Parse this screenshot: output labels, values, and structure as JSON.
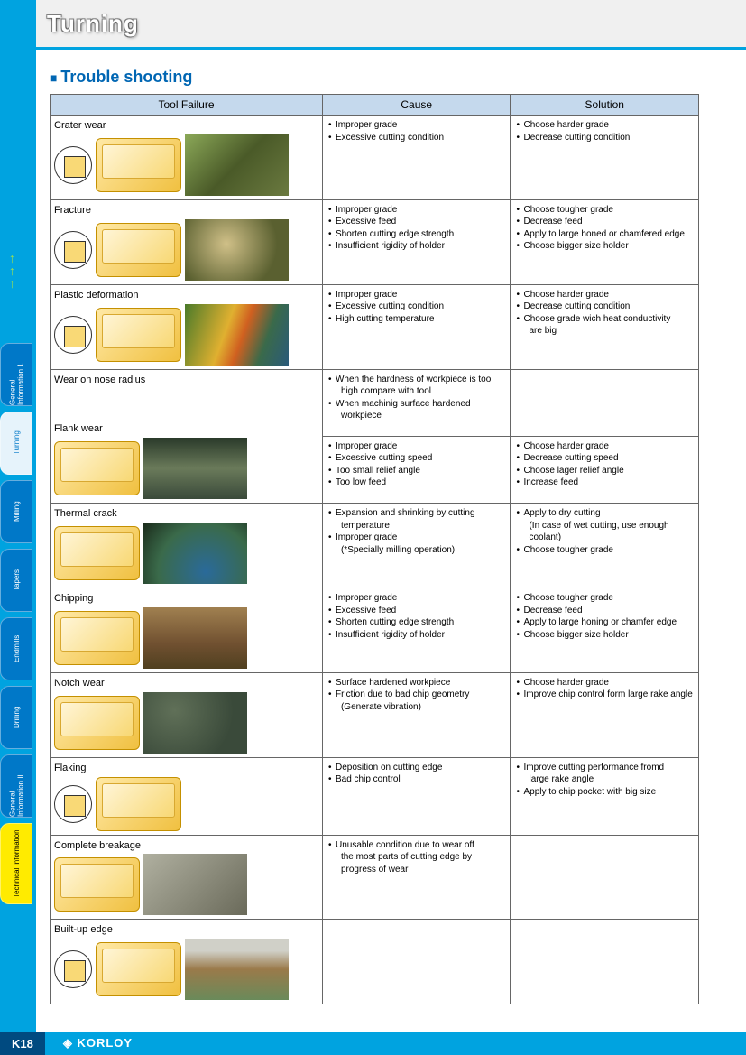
{
  "page": {
    "title": "Turning",
    "section": "Trouble shooting",
    "pageNumber": "K18",
    "brand": "KORLOY"
  },
  "sideTabs": [
    {
      "label": "General Information 1",
      "style": "blue"
    },
    {
      "label": "Turning",
      "style": "active"
    },
    {
      "label": "Milling",
      "style": "blue"
    },
    {
      "label": "Tapers",
      "style": "blue"
    },
    {
      "label": "Endmills",
      "style": "blue"
    },
    {
      "label": "Drilling",
      "style": "blue"
    },
    {
      "label": "General Information II",
      "style": "blue"
    },
    {
      "label": "Technical Information",
      "style": "yellow"
    }
  ],
  "table": {
    "headers": [
      "Tool Failure",
      "Cause",
      "Solution"
    ],
    "colWidths": [
      "42%",
      "29%",
      "29%"
    ],
    "rows": [
      {
        "failure": {
          "labels": [
            "Crater wear"
          ],
          "photoClass": "green1",
          "hasIcon": true
        },
        "cause": [
          "Improper grade",
          "Excessive cutting condition"
        ],
        "solution": [
          "Choose harder grade",
          "Decrease cutting condition"
        ]
      },
      {
        "failure": {
          "labels": [
            "Fracture"
          ],
          "photoClass": "green2",
          "hasIcon": true
        },
        "cause": [
          "Improper grade",
          "Excessive feed",
          "Shorten cutting edge strength",
          "Insufficient rigidity of holder"
        ],
        "solution": [
          "Choose tougher grade",
          "Decrease feed",
          "Apply to large honed or chamfered edge",
          "Choose bigger size holder"
        ]
      },
      {
        "failure": {
          "labels": [
            "Plastic deformation"
          ],
          "photoClass": "rainbow",
          "hasIcon": true
        },
        "cause": [
          "Improper grade",
          "Excessive cutting condition",
          "High cutting temperature"
        ],
        "solution": [
          "Choose harder grade",
          "Decrease cutting condition",
          "Choose grade wich heat conductivity",
          {
            "indent": "are big"
          }
        ]
      },
      {
        "failure": {
          "labels": [
            "Wear on nose radius",
            "Flank wear"
          ],
          "photoClass": "dark",
          "hasIcon": false,
          "tall": true
        },
        "causeSplit": [
          [
            "When the hardness of workpiece is too",
            {
              "indent": "high compare with tool"
            },
            "When machinig surface hardened",
            {
              "indent": "workpiece"
            }
          ],
          [
            "Improper grade",
            "Excessive cutting speed",
            "Too small relief angle",
            "Too low feed"
          ]
        ],
        "solutionSplit": [
          [],
          [
            "Choose harder grade",
            "Decrease cutting speed",
            "Choose lager relief angle",
            "Increase feed"
          ]
        ]
      },
      {
        "failure": {
          "labels": [
            "Thermal crack"
          ],
          "photoClass": "bluegreen",
          "hasIcon": false
        },
        "cause": [
          "Expansion and shrinking by cutting",
          {
            "indent": "temperature"
          },
          "Improper grade",
          {
            "indent": "(*Specially milling operation)"
          }
        ],
        "solution": [
          "Apply to dry cutting",
          {
            "indent": "(In case of wet cutting, use enough"
          },
          {
            "indent": "coolant)"
          },
          "Choose tougher grade"
        ]
      },
      {
        "failure": {
          "labels": [
            "Chipping"
          ],
          "photoClass": "brown",
          "hasIcon": false
        },
        "cause": [
          "Improper grade",
          "Excessive feed",
          "Shorten cutting edge strength",
          "Insufficient rigidity of holder"
        ],
        "solution": [
          "Choose tougher grade",
          "Decrease feed",
          "Apply to large honing or chamfer edge",
          "Choose bigger size holder"
        ]
      },
      {
        "failure": {
          "labels": [
            "Notch wear"
          ],
          "photoClass": "flaky",
          "hasIcon": false
        },
        "cause": [
          "Surface hardened workpiece",
          "Friction due to bad chip geometry",
          {
            "indent": "(Generate vibration)"
          }
        ],
        "solution": [
          "Choose harder grade",
          "Improve chip control form large rake angle"
        ]
      },
      {
        "failure": {
          "labels": [
            "Flaking"
          ],
          "photoClass": "",
          "hasIcon": true,
          "noPhoto": true
        },
        "cause": [
          "Deposition on cutting edge",
          "Bad chip control"
        ],
        "solution": [
          "Improve cutting performance fromd",
          {
            "indent": "large rake angle"
          },
          "Apply to chip pocket with big size"
        ]
      },
      {
        "failure": {
          "labels": [
            "Complete breakage"
          ],
          "photoClass": "gray",
          "hasIcon": false
        },
        "cause": [
          "Unusable condition due to wear off",
          {
            "indent": "the most parts of cutting edge by"
          },
          {
            "indent": "progress of wear"
          }
        ],
        "solution": []
      },
      {
        "failure": {
          "labels": [
            "Built-up edge"
          ],
          "photoClass": "mixed",
          "hasIcon": true
        },
        "cause": [],
        "solution": []
      }
    ]
  }
}
